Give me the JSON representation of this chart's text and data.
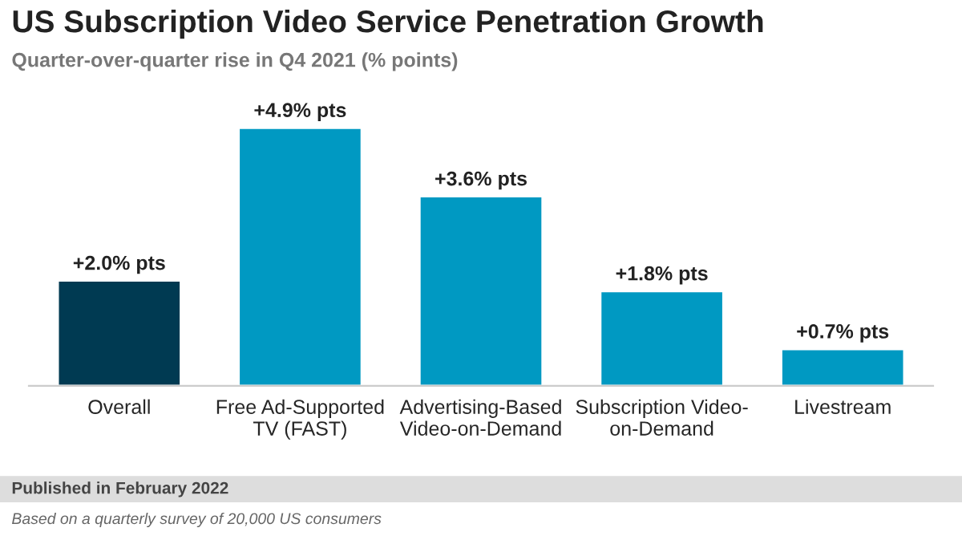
{
  "chart_data": {
    "type": "bar",
    "title": "US Subscription Video Service Penetration Growth",
    "subtitle": "Quarter-over-quarter rise in Q4 2021 (% points)",
    "categories": [
      "Overall",
      "Free Ad-Supported\nTV (FAST)",
      "Advertising-Based\nVideo-on-Demand",
      "Subscription Video-\non-Demand",
      "Livestream"
    ],
    "values": [
      2.0,
      4.9,
      3.6,
      1.8,
      0.7
    ],
    "colors": [
      "#003a52",
      "#0099c2",
      "#0099c2",
      "#0099c2",
      "#0099c2"
    ],
    "value_labels": [
      "+2.0% pts",
      "+4.9% pts",
      "+3.6% pts",
      "+1.8% pts",
      "+0.7% pts"
    ],
    "tick_labels": "x",
    "grid": false,
    "legend": false,
    "annotations": [
      "Published in February 2022",
      "Based on a quarterly survey of 20,000 US consumers"
    ]
  }
}
